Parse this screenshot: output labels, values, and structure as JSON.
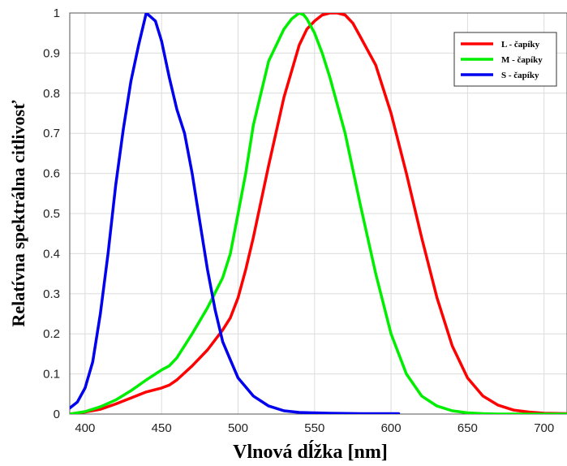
{
  "chart_data": {
    "type": "line",
    "title": "",
    "xlabel": "Vlnová dĺžka [nm]",
    "ylabel": "Relatívna spektrálna citlivosť",
    "xlim": [
      390,
      715
    ],
    "ylim": [
      0,
      1
    ],
    "xticks": [
      400,
      450,
      500,
      550,
      600,
      650,
      700
    ],
    "xtick_labels": [
      "400",
      "450",
      "500",
      "550",
      "600",
      "650",
      "700"
    ],
    "yticks": [
      0,
      0.1,
      0.2,
      0.3,
      0.4,
      0.5,
      0.6,
      0.7,
      0.8,
      0.9,
      1
    ],
    "ytick_labels": [
      "0",
      "0.1",
      "0.2",
      "0.3",
      "0.4",
      "0.5",
      "0.6",
      "0.7",
      "0.8",
      "0.9",
      "1"
    ],
    "grid": true,
    "legend_position": "top-right",
    "series": [
      {
        "name": "L - čapíky",
        "color": "#ff0000",
        "x": [
          390,
          400,
          410,
          420,
          430,
          440,
          450,
          455,
          460,
          470,
          480,
          490,
          495,
          500,
          505,
          510,
          520,
          530,
          540,
          545,
          550,
          555,
          560,
          565,
          570,
          575,
          580,
          590,
          600,
          610,
          620,
          630,
          640,
          650,
          660,
          670,
          680,
          690,
          700,
          715
        ],
        "y": [
          0.0,
          0.005,
          0.012,
          0.025,
          0.04,
          0.055,
          0.065,
          0.072,
          0.085,
          0.12,
          0.16,
          0.21,
          0.24,
          0.29,
          0.36,
          0.44,
          0.62,
          0.79,
          0.92,
          0.96,
          0.98,
          0.995,
          1.0,
          1.0,
          0.995,
          0.975,
          0.94,
          0.87,
          0.75,
          0.6,
          0.44,
          0.29,
          0.17,
          0.09,
          0.045,
          0.022,
          0.01,
          0.005,
          0.002,
          0.001
        ]
      },
      {
        "name": "M - čapíky",
        "color": "#00ee00",
        "x": [
          390,
          400,
          410,
          420,
          430,
          440,
          450,
          455,
          460,
          470,
          480,
          490,
          495,
          500,
          505,
          510,
          520,
          530,
          535,
          540,
          543,
          545,
          550,
          555,
          560,
          570,
          580,
          590,
          600,
          610,
          620,
          630,
          640,
          650,
          660,
          670,
          690,
          715
        ],
        "y": [
          0.0,
          0.006,
          0.018,
          0.035,
          0.058,
          0.085,
          0.11,
          0.12,
          0.14,
          0.2,
          0.265,
          0.34,
          0.4,
          0.5,
          0.6,
          0.72,
          0.88,
          0.96,
          0.985,
          1.0,
          0.995,
          0.985,
          0.95,
          0.9,
          0.84,
          0.7,
          0.52,
          0.35,
          0.2,
          0.1,
          0.045,
          0.02,
          0.008,
          0.003,
          0.001,
          0.0,
          0.0,
          0.0
        ]
      },
      {
        "name": "S - čapíky",
        "color": "#0000ee",
        "x": [
          390,
          395,
          400,
          405,
          410,
          415,
          420,
          425,
          430,
          435,
          440,
          443,
          446,
          450,
          455,
          460,
          465,
          470,
          475,
          480,
          485,
          490,
          495,
          500,
          510,
          520,
          530,
          540,
          550,
          560,
          580,
          605
        ],
        "y": [
          0.015,
          0.03,
          0.065,
          0.13,
          0.25,
          0.4,
          0.57,
          0.71,
          0.83,
          0.92,
          1.0,
          0.99,
          0.98,
          0.93,
          0.84,
          0.76,
          0.7,
          0.6,
          0.48,
          0.36,
          0.26,
          0.18,
          0.135,
          0.09,
          0.045,
          0.02,
          0.008,
          0.004,
          0.003,
          0.002,
          0.001,
          0.001
        ]
      }
    ]
  }
}
